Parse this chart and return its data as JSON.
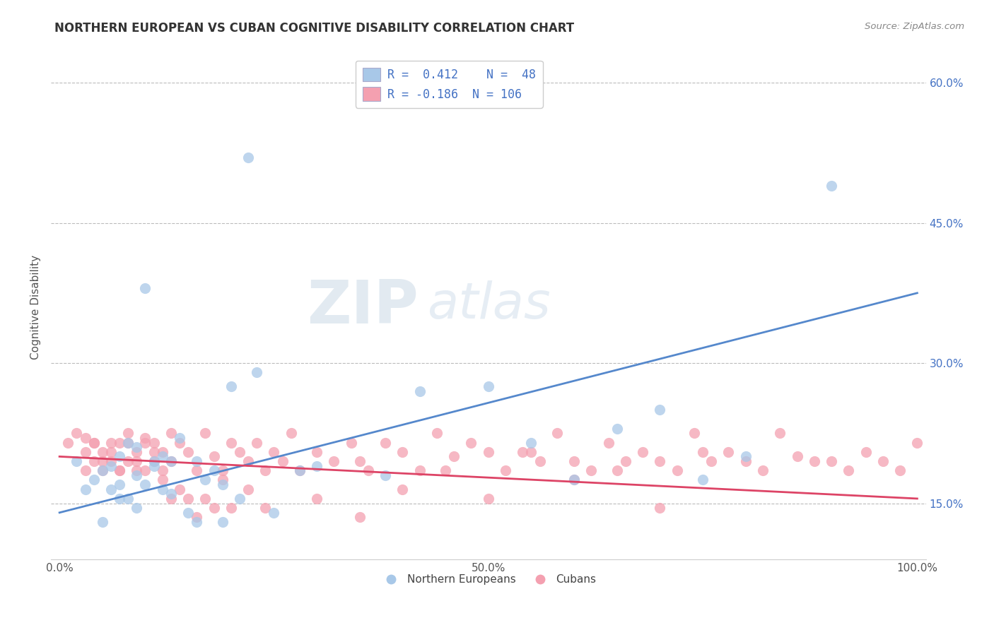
{
  "title": "NORTHERN EUROPEAN VS CUBAN COGNITIVE DISABILITY CORRELATION CHART",
  "source": "Source: ZipAtlas.com",
  "ylabel": "Cognitive Disability",
  "xlim": [
    -0.01,
    1.01
  ],
  "ylim": [
    0.09,
    0.63
  ],
  "xticks": [
    0.0,
    0.25,
    0.5,
    0.75,
    1.0
  ],
  "xticklabels": [
    "0.0%",
    "",
    "50.0%",
    "",
    "100.0%"
  ],
  "yticks_right": [
    0.15,
    0.3,
    0.45,
    0.6
  ],
  "ytick_right_labels": [
    "15.0%",
    "30.0%",
    "45.0%",
    "60.0%"
  ],
  "R_blue": 0.412,
  "N_blue": 48,
  "R_pink": -0.186,
  "N_pink": 106,
  "blue_color": "#a8c8e8",
  "pink_color": "#f4a0b0",
  "blue_line_color": "#5588cc",
  "pink_line_color": "#dd4466",
  "legend_text_color": "#4472c4",
  "background_color": "#ffffff",
  "blue_trend_y_start": 0.14,
  "blue_trend_y_end": 0.375,
  "pink_trend_y_start": 0.2,
  "pink_trend_y_end": 0.155,
  "blue_scatter_x": [
    0.02,
    0.04,
    0.05,
    0.06,
    0.06,
    0.07,
    0.07,
    0.08,
    0.09,
    0.09,
    0.1,
    0.1,
    0.11,
    0.12,
    0.12,
    0.13,
    0.14,
    0.15,
    0.16,
    0.17,
    0.18,
    0.19,
    0.2,
    0.22,
    0.23,
    0.08,
    0.11,
    0.13,
    0.16,
    0.19,
    0.21,
    0.25,
    0.28,
    0.3,
    0.38,
    0.42,
    0.5,
    0.55,
    0.6,
    0.65,
    0.7,
    0.75,
    0.8,
    0.9,
    0.03,
    0.05,
    0.07,
    0.09
  ],
  "blue_scatter_y": [
    0.195,
    0.175,
    0.185,
    0.19,
    0.165,
    0.2,
    0.17,
    0.215,
    0.18,
    0.21,
    0.38,
    0.17,
    0.19,
    0.2,
    0.165,
    0.16,
    0.22,
    0.14,
    0.13,
    0.175,
    0.185,
    0.17,
    0.275,
    0.52,
    0.29,
    0.155,
    0.195,
    0.195,
    0.195,
    0.13,
    0.155,
    0.14,
    0.185,
    0.19,
    0.18,
    0.27,
    0.275,
    0.215,
    0.175,
    0.23,
    0.25,
    0.175,
    0.2,
    0.49,
    0.165,
    0.13,
    0.155,
    0.145
  ],
  "pink_scatter_x": [
    0.01,
    0.02,
    0.03,
    0.03,
    0.04,
    0.04,
    0.05,
    0.05,
    0.06,
    0.06,
    0.07,
    0.07,
    0.08,
    0.08,
    0.09,
    0.09,
    0.1,
    0.1,
    0.11,
    0.11,
    0.12,
    0.12,
    0.13,
    0.13,
    0.14,
    0.15,
    0.16,
    0.17,
    0.18,
    0.19,
    0.2,
    0.21,
    0.22,
    0.23,
    0.24,
    0.25,
    0.26,
    0.27,
    0.28,
    0.3,
    0.32,
    0.34,
    0.36,
    0.38,
    0.4,
    0.42,
    0.44,
    0.46,
    0.48,
    0.5,
    0.52,
    0.54,
    0.56,
    0.58,
    0.6,
    0.62,
    0.64,
    0.66,
    0.68,
    0.7,
    0.72,
    0.74,
    0.76,
    0.78,
    0.8,
    0.82,
    0.84,
    0.86,
    0.88,
    0.9,
    0.92,
    0.94,
    0.96,
    0.98,
    1.0,
    0.35,
    0.45,
    0.55,
    0.65,
    0.75,
    0.03,
    0.04,
    0.05,
    0.06,
    0.07,
    0.08,
    0.09,
    0.1,
    0.11,
    0.12,
    0.13,
    0.14,
    0.15,
    0.16,
    0.17,
    0.18,
    0.19,
    0.2,
    0.22,
    0.24,
    0.3,
    0.35,
    0.4,
    0.5,
    0.6,
    0.7
  ],
  "pink_scatter_y": [
    0.215,
    0.225,
    0.205,
    0.185,
    0.215,
    0.195,
    0.205,
    0.185,
    0.205,
    0.195,
    0.215,
    0.185,
    0.225,
    0.195,
    0.205,
    0.185,
    0.22,
    0.185,
    0.215,
    0.195,
    0.205,
    0.185,
    0.225,
    0.195,
    0.215,
    0.205,
    0.185,
    0.225,
    0.2,
    0.185,
    0.215,
    0.205,
    0.195,
    0.215,
    0.185,
    0.205,
    0.195,
    0.225,
    0.185,
    0.205,
    0.195,
    0.215,
    0.185,
    0.215,
    0.205,
    0.185,
    0.225,
    0.2,
    0.215,
    0.205,
    0.185,
    0.205,
    0.195,
    0.225,
    0.195,
    0.185,
    0.215,
    0.195,
    0.205,
    0.195,
    0.185,
    0.225,
    0.195,
    0.205,
    0.195,
    0.185,
    0.225,
    0.2,
    0.195,
    0.195,
    0.185,
    0.205,
    0.195,
    0.185,
    0.215,
    0.195,
    0.185,
    0.205,
    0.185,
    0.205,
    0.22,
    0.215,
    0.195,
    0.215,
    0.185,
    0.215,
    0.195,
    0.215,
    0.205,
    0.175,
    0.155,
    0.165,
    0.155,
    0.135,
    0.155,
    0.145,
    0.175,
    0.145,
    0.165,
    0.145,
    0.155,
    0.135,
    0.165,
    0.155,
    0.175,
    0.145
  ]
}
